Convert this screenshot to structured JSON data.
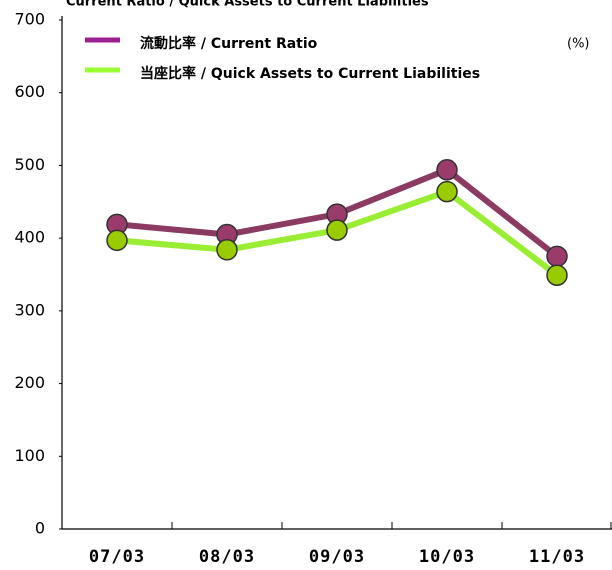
{
  "chart_data": {
    "type": "line",
    "title": "Current Ratio / Quick Assets to Current Liabilities",
    "unit_label": "(%)",
    "categories": [
      "07/03",
      "08/03",
      "09/03",
      "10/03",
      "11/03"
    ],
    "series": [
      {
        "name": "流動比率 / Current Ratio",
        "color": "#8b3a62",
        "marker_color": "#9b3b6b",
        "legend_color": "#9b1f8f",
        "values": [
          419,
          405,
          433,
          494,
          375
        ]
      },
      {
        "name": "当座比率 / Quick Assets to Current Liabilities",
        "color": "#99ee33",
        "marker_color": "#99cc00",
        "legend_color": "#99ff33",
        "values": [
          397,
          384,
          411,
          464,
          349
        ]
      }
    ],
    "ylim": [
      0,
      700
    ],
    "yticks": [
      0,
      100,
      200,
      300,
      400,
      500,
      600,
      700
    ],
    "grid": false
  }
}
